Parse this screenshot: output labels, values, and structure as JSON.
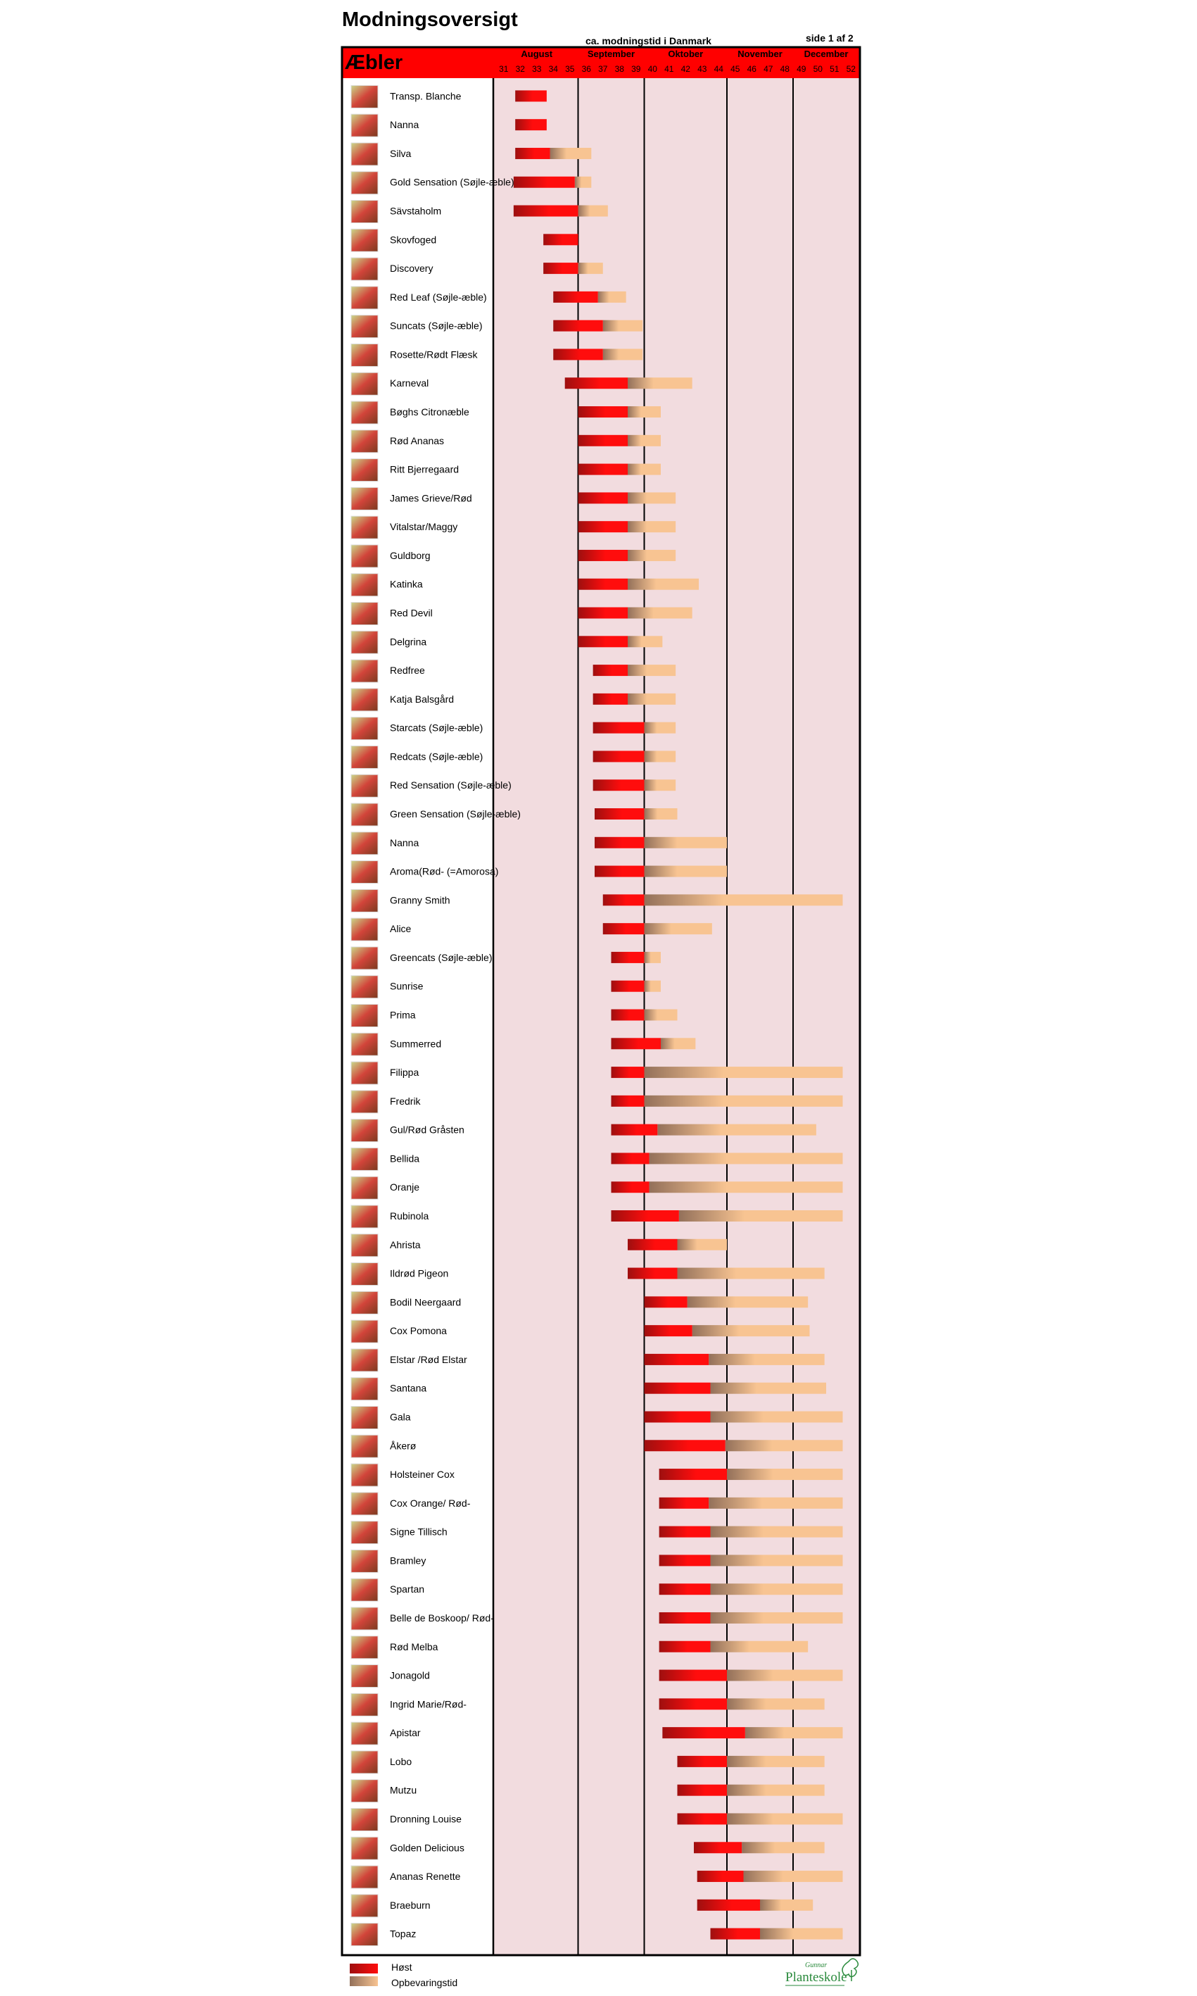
{
  "page": {
    "title": "Modningsoversigt",
    "subtitle": "ca. modningstid i Danmark",
    "page_indicator": "side 1 af 2",
    "section_title": "Æbler"
  },
  "legend": {
    "harvest_label": "Høst",
    "storage_label": "Opbevaringstid"
  },
  "logo": {
    "top_text": "Gunnar",
    "main_text": "Planteskole"
  },
  "colors": {
    "header_red": "#ff0000",
    "plot_background": "#f2dcdf",
    "harvest_dark": "#9e0f0f",
    "harvest_bright": "#ff0d0d",
    "storage_brown": "#93705a",
    "storage_light": "#f8c492",
    "logo_green": "#2a8a3c"
  },
  "chart_data": {
    "type": "gantt",
    "title": "Modningsoversigt",
    "subtitle": "ca. modningstid i Danmark",
    "x_unit": "week",
    "xlim": [
      31,
      52
    ],
    "months": [
      {
        "name": "August",
        "start": 31,
        "end": 35
      },
      {
        "name": "September",
        "start": 36,
        "end": 39
      },
      {
        "name": "Oktober",
        "start": 40,
        "end": 44
      },
      {
        "name": "November",
        "start": 45,
        "end": 48
      },
      {
        "name": "December",
        "start": 49,
        "end": 52
      }
    ],
    "weeks": [
      "31",
      "32",
      "33",
      "34",
      "35",
      "36",
      "37",
      "38",
      "39",
      "40",
      "41",
      "42",
      "43",
      "44",
      "45",
      "46",
      "47",
      "48",
      "49",
      "50",
      "51",
      "52"
    ],
    "series": [
      {
        "name": "Høst"
      },
      {
        "name": "Opbevaringstid"
      }
    ],
    "varieties": [
      {
        "name": "Transp. Blanche",
        "harvest": [
          32.2,
          34.1
        ],
        "storage_end": 34.1
      },
      {
        "name": "Nanna",
        "harvest": [
          32.2,
          34.1
        ],
        "storage_end": 34.1
      },
      {
        "name": "Silva",
        "harvest": [
          32.2,
          34.3
        ],
        "storage_end": 36.8
      },
      {
        "name": "Gold Sensation (Søjle-æble)",
        "harvest": [
          32.1,
          35.8
        ],
        "storage_end": 36.8
      },
      {
        "name": "Sävstaholm",
        "harvest": [
          32.1,
          36.0
        ],
        "storage_end": 37.8
      },
      {
        "name": "Skovfoged",
        "harvest": [
          33.9,
          36.0
        ],
        "storage_end": 36.0
      },
      {
        "name": "Discovery",
        "harvest": [
          33.9,
          36.0
        ],
        "storage_end": 37.5
      },
      {
        "name": "Red Leaf (Søjle-æble)",
        "harvest": [
          34.5,
          37.2
        ],
        "storage_end": 38.9
      },
      {
        "name": "Suncats (Søjle-æble)",
        "harvest": [
          34.5,
          37.5
        ],
        "storage_end": 39.9
      },
      {
        "name": "Rosette/Rødt Flæsk",
        "harvest": [
          34.5,
          37.5
        ],
        "storage_end": 39.9
      },
      {
        "name": "Karneval",
        "harvest": [
          35.2,
          39.0
        ],
        "storage_end": 42.9
      },
      {
        "name": "Bøghs Citronæble",
        "harvest": [
          36.0,
          39.0
        ],
        "storage_end": 41.0
      },
      {
        "name": "Rød Ananas",
        "harvest": [
          36.0,
          39.0
        ],
        "storage_end": 41.0
      },
      {
        "name": "Ritt Bjerregaard",
        "harvest": [
          36.0,
          39.0
        ],
        "storage_end": 41.0
      },
      {
        "name": "James Grieve/Rød",
        "harvest": [
          36.0,
          39.0
        ],
        "storage_end": 41.9
      },
      {
        "name": "Vitalstar/Maggy",
        "harvest": [
          36.0,
          39.0
        ],
        "storage_end": 41.9
      },
      {
        "name": "Guldborg",
        "harvest": [
          36.0,
          39.0
        ],
        "storage_end": 41.9
      },
      {
        "name": "Katinka",
        "harvest": [
          36.0,
          39.0
        ],
        "storage_end": 43.3
      },
      {
        "name": "Red Devil",
        "harvest": [
          36.0,
          39.0
        ],
        "storage_end": 42.9
      },
      {
        "name": "Delgrina",
        "harvest": [
          36.0,
          39.0
        ],
        "storage_end": 41.1
      },
      {
        "name": "Redfree",
        "harvest": [
          36.9,
          39.0
        ],
        "storage_end": 41.9
      },
      {
        "name": "Katja Balsgård",
        "harvest": [
          36.9,
          39.0
        ],
        "storage_end": 41.9
      },
      {
        "name": "Starcats (Søjle-æble)",
        "harvest": [
          36.9,
          40.0
        ],
        "storage_end": 41.9
      },
      {
        "name": "Redcats (Søjle-æble)",
        "harvest": [
          36.9,
          40.0
        ],
        "storage_end": 41.9
      },
      {
        "name": "Red Sensation (Søjle-æble)",
        "harvest": [
          36.9,
          40.0
        ],
        "storage_end": 41.9
      },
      {
        "name": "Green Sensation (Søjle-æble)",
        "harvest": [
          37.0,
          40.0
        ],
        "storage_end": 42.0
      },
      {
        "name": "Nanna",
        "harvest": [
          37.0,
          40.0
        ],
        "storage_end": 45.0
      },
      {
        "name": "Aroma(Rød- (=Amorosa)",
        "harvest": [
          37.0,
          40.0
        ],
        "storage_end": 45.0
      },
      {
        "name": "Granny Smith",
        "harvest": [
          37.5,
          40.0
        ],
        "storage_end": 52.0
      },
      {
        "name": "Alice",
        "harvest": [
          37.5,
          40.0
        ],
        "storage_end": 44.1
      },
      {
        "name": "Greencats (Søjle-æble)",
        "harvest": [
          38.0,
          40.0
        ],
        "storage_end": 41.0
      },
      {
        "name": "Sunrise",
        "harvest": [
          38.0,
          40.0
        ],
        "storage_end": 41.0
      },
      {
        "name": "Prima",
        "harvest": [
          38.0,
          40.0
        ],
        "storage_end": 42.0
      },
      {
        "name": "Summerred",
        "harvest": [
          38.0,
          41.0
        ],
        "storage_end": 43.1
      },
      {
        "name": "Filippa",
        "harvest": [
          38.0,
          40.0
        ],
        "storage_end": 52.0
      },
      {
        "name": "Fredrik",
        "harvest": [
          38.0,
          40.0
        ],
        "storage_end": 52.0
      },
      {
        "name": "Gul/Rød Gråsten",
        "harvest": [
          38.0,
          40.8
        ],
        "storage_end": 50.4
      },
      {
        "name": "Bellida",
        "harvest": [
          38.0,
          40.3
        ],
        "storage_end": 52.0
      },
      {
        "name": "Oranje",
        "harvest": [
          38.0,
          40.3
        ],
        "storage_end": 52.0
      },
      {
        "name": "Rubinola",
        "harvest": [
          38.0,
          42.1
        ],
        "storage_end": 52.0
      },
      {
        "name": "Ahrista",
        "harvest": [
          39.0,
          42.0
        ],
        "storage_end": 45.0
      },
      {
        "name": "Ildrød Pigeon",
        "harvest": [
          39.0,
          42.0
        ],
        "storage_end": 50.9
      },
      {
        "name": "Bodil Neergaard",
        "harvest": [
          40.0,
          42.6
        ],
        "storage_end": 49.9
      },
      {
        "name": "Cox Pomona",
        "harvest": [
          40.0,
          42.9
        ],
        "storage_end": 50.0
      },
      {
        "name": "Elstar /Rød Elstar",
        "harvest": [
          40.0,
          43.9
        ],
        "storage_end": 50.9
      },
      {
        "name": "Santana",
        "harvest": [
          40.0,
          44.0
        ],
        "storage_end": 51.0
      },
      {
        "name": "Gala",
        "harvest": [
          40.0,
          44.0
        ],
        "storage_end": 52.0
      },
      {
        "name": "Åkerø",
        "harvest": [
          40.0,
          44.9
        ],
        "storage_end": 52.0
      },
      {
        "name": "Holsteiner Cox",
        "harvest": [
          40.9,
          45.0
        ],
        "storage_end": 52.0
      },
      {
        "name": "Cox Orange/ Rød-",
        "harvest": [
          40.9,
          43.9
        ],
        "storage_end": 52.0
      },
      {
        "name": "Signe Tillisch",
        "harvest": [
          40.9,
          44.0
        ],
        "storage_end": 52.0
      },
      {
        "name": "Bramley",
        "harvest": [
          40.9,
          44.0
        ],
        "storage_end": 52.0
      },
      {
        "name": "Spartan",
        "harvest": [
          40.9,
          44.0
        ],
        "storage_end": 52.0
      },
      {
        "name": "Belle de Boskoop/ Rød-",
        "harvest": [
          40.9,
          44.0
        ],
        "storage_end": 52.0
      },
      {
        "name": "Rød Melba",
        "harvest": [
          40.9,
          44.0
        ],
        "storage_end": 49.9
      },
      {
        "name": "Jonagold",
        "harvest": [
          40.9,
          45.0
        ],
        "storage_end": 52.0
      },
      {
        "name": "Ingrid Marie/Rød-",
        "harvest": [
          40.9,
          45.0
        ],
        "storage_end": 50.9
      },
      {
        "name": "Apistar",
        "harvest": [
          41.1,
          46.1
        ],
        "storage_end": 52.0
      },
      {
        "name": "Lobo",
        "harvest": [
          42.0,
          45.0
        ],
        "storage_end": 50.9
      },
      {
        "name": "Mutzu",
        "harvest": [
          42.0,
          45.0
        ],
        "storage_end": 50.9
      },
      {
        "name": "Dronning Louise",
        "harvest": [
          42.0,
          45.0
        ],
        "storage_end": 52.0
      },
      {
        "name": "Golden Delicious",
        "harvest": [
          43.0,
          45.9
        ],
        "storage_end": 50.9
      },
      {
        "name": "Ananas Renette",
        "harvest": [
          43.2,
          46.0
        ],
        "storage_end": 52.0
      },
      {
        "name": "Braeburn",
        "harvest": [
          43.2,
          47.0
        ],
        "storage_end": 50.2
      },
      {
        "name": "Topaz",
        "harvest": [
          44.0,
          47.0
        ],
        "storage_end": 52.0
      }
    ]
  }
}
